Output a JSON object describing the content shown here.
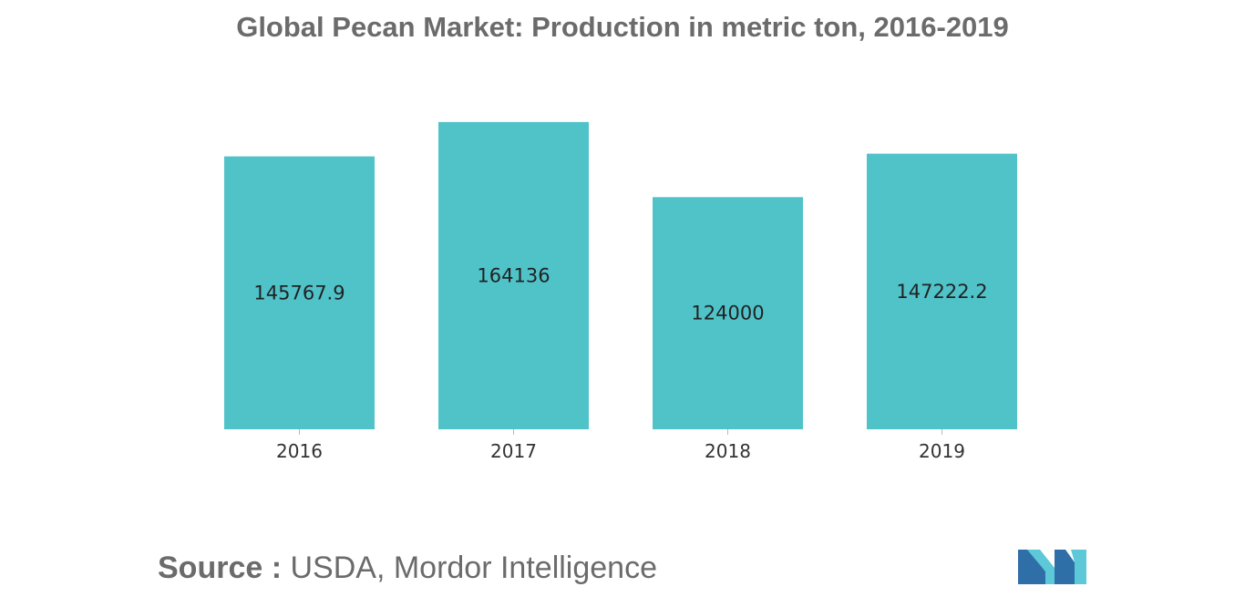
{
  "chart_data": {
    "type": "bar",
    "title": "Global Pecan Market: Production in metric ton, 2016-2019",
    "categories": [
      "2016",
      "2017",
      "2018",
      "2019"
    ],
    "values": [
      145767.9,
      164136,
      124000,
      147222.2
    ],
    "value_labels": [
      "145767.9",
      "164136",
      "124000",
      "147222.2"
    ],
    "xlabel": "",
    "ylabel": "",
    "ylim": [
      0,
      185000
    ],
    "bar_color": "#50c3c9",
    "grid": false,
    "legend": "none"
  },
  "source": {
    "label": "Source :",
    "text": " USDA, Mordor Intelligence"
  },
  "logo": {
    "icon": "mordor-intelligence-logo",
    "colors": [
      "#2f6fa8",
      "#5cc8d8"
    ]
  }
}
